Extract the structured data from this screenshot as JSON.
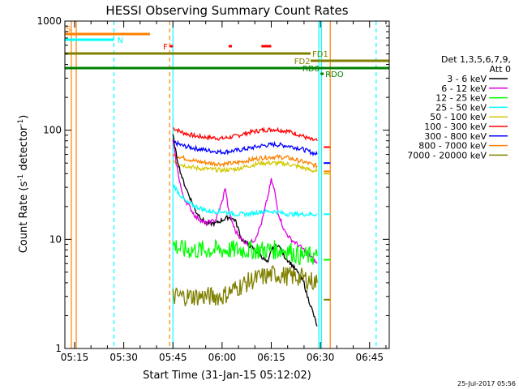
{
  "chart_data": {
    "type": "line",
    "title": "HESSI Observing Summary Count Rates",
    "xlabel": "Start Time (31-Jan-15 05:12:02)",
    "ylabel_main": "Count Rate (s",
    "ylabel_sup": "-1",
    "ylabel_tail": " detector",
    "ylabel_end": ")",
    "yscale": "log",
    "xlim": [
      "05:12:02",
      "06:51:00"
    ],
    "ylim": [
      1,
      1000
    ],
    "x_ticks": [
      "05:15",
      "05:30",
      "05:45",
      "06:00",
      "06:15",
      "06:30",
      "06:45"
    ],
    "y_ticks": [
      "1",
      "10",
      "100",
      "1000"
    ],
    "footer_date": "25-Jul-2017 05:56",
    "legend": {
      "header_line1": "Det 1,3,5,6,7,9,",
      "header_line2": "Att 0",
      "entries": [
        {
          "label": "3 - 6 keV",
          "color": "#000000"
        },
        {
          "label": "6 - 12 keV",
          "color": "#e000e0"
        },
        {
          "label": "12 - 25 keV",
          "color": "#00ff00"
        },
        {
          "label": "25 - 50 keV",
          "color": "#00ffff"
        },
        {
          "label": "50 - 100 keV",
          "color": "#d2c800"
        },
        {
          "label": "100 - 300 keV",
          "color": "#ff0000"
        },
        {
          "label": "300 - 800 keV",
          "color": "#0000ff"
        },
        {
          "label": "800 - 7000 keV",
          "color": "#ff8000"
        },
        {
          "label": "7000 - 20000 keV",
          "color": "#808000"
        }
      ]
    },
    "series": [
      {
        "name": "100 - 300 keV",
        "color": "#ff0000",
        "x": [
          "05:45",
          "05:48",
          "05:52",
          "05:56",
          "06:00",
          "06:04",
          "06:08",
          "06:12",
          "06:16",
          "06:20",
          "06:24",
          "06:27",
          "06:29"
        ],
        "values": [
          105,
          95,
          88,
          86,
          84,
          88,
          95,
          100,
          102,
          98,
          90,
          82,
          80
        ]
      },
      {
        "name": "300 - 800 keV",
        "color": "#0000ff",
        "x": [
          "05:45",
          "05:48",
          "05:52",
          "05:56",
          "06:00",
          "06:04",
          "06:08",
          "06:12",
          "06:16",
          "06:20",
          "06:24",
          "06:27",
          "06:29"
        ],
        "values": [
          78,
          72,
          68,
          65,
          63,
          65,
          68,
          72,
          74,
          72,
          68,
          63,
          60
        ]
      },
      {
        "name": "800 - 7000 keV",
        "color": "#ff8000",
        "x": [
          "05:45",
          "05:48",
          "05:52",
          "05:56",
          "06:00",
          "06:04",
          "06:08",
          "06:12",
          "06:16",
          "06:20",
          "06:24",
          "06:27",
          "06:29"
        ],
        "values": [
          60,
          56,
          52,
          50,
          49,
          50,
          53,
          56,
          57,
          56,
          52,
          49,
          47
        ]
      },
      {
        "name": "50 - 100 keV",
        "color": "#d2c800",
        "x": [
          "05:45",
          "05:48",
          "05:52",
          "05:56",
          "06:00",
          "06:04",
          "06:08",
          "06:12",
          "06:16",
          "06:20",
          "06:24",
          "06:27",
          "06:29"
        ],
        "values": [
          53,
          48,
          45,
          44,
          43,
          44,
          47,
          50,
          50,
          49,
          46,
          43,
          42
        ]
      },
      {
        "name": "3 - 6 keV",
        "color": "#000000",
        "x": [
          "05:45",
          "05:46",
          "05:47",
          "05:48",
          "05:50",
          "05:52",
          "05:55",
          "05:58",
          "06:00",
          "06:02",
          "06:04",
          "06:06",
          "06:08",
          "06:10",
          "06:12",
          "06:14",
          "06:15",
          "06:17",
          "06:19",
          "06:21",
          "06:23",
          "06:25",
          "06:26",
          "06:27",
          "06:28",
          "06:29"
        ],
        "values": [
          90,
          60,
          45,
          35,
          25,
          18,
          14,
          14,
          15,
          16,
          15,
          10,
          9,
          8,
          7,
          6,
          8,
          9,
          7,
          6,
          5,
          4,
          3,
          2.5,
          2,
          1.6
        ]
      },
      {
        "name": "6 - 12 keV",
        "color": "#e000e0",
        "x": [
          "05:45",
          "05:46",
          "05:47",
          "05:48",
          "05:50",
          "05:52",
          "05:55",
          "05:58",
          "05:59",
          "06:00",
          "06:01",
          "06:02",
          "06:04",
          "06:06",
          "06:08",
          "06:10",
          "06:12",
          "06:14",
          "06:15",
          "06:16",
          "06:17",
          "06:19",
          "06:21",
          "06:23",
          "06:25",
          "06:27",
          "06:29"
        ],
        "values": [
          80,
          50,
          35,
          25,
          20,
          16,
          14,
          15,
          18,
          22,
          30,
          18,
          12,
          10,
          9,
          10,
          14,
          25,
          35,
          28,
          18,
          12,
          10,
          9,
          8,
          7,
          6
        ]
      },
      {
        "name": "25 - 50 keV",
        "color": "#00ffff",
        "x": [
          "05:45",
          "05:47",
          "05:49",
          "05:52",
          "05:56",
          "06:00",
          "06:04",
          "06:08",
          "06:12",
          "06:16",
          "06:20",
          "06:24",
          "06:27",
          "06:29"
        ],
        "values": [
          32,
          26,
          22,
          20,
          18,
          18,
          17,
          17,
          18,
          18,
          17,
          17,
          17,
          17
        ]
      },
      {
        "name": "12 - 25 keV",
        "color": "#00ff00",
        "x": [
          "05:45",
          "05:48",
          "05:52",
          "05:56",
          "06:00",
          "06:04",
          "06:08",
          "06:12",
          "06:16",
          "06:20",
          "06:24",
          "06:27",
          "06:29"
        ],
        "values": [
          9,
          8,
          8,
          8,
          8,
          8,
          8,
          8,
          8,
          8,
          7,
          7,
          7
        ]
      },
      {
        "name": "7000 - 20000 keV",
        "color": "#808000",
        "x": [
          "05:45",
          "05:48",
          "05:52",
          "05:56",
          "06:00",
          "06:03",
          "06:06",
          "06:09",
          "06:12",
          "06:16",
          "06:20",
          "06:24",
          "06:27",
          "06:29"
        ],
        "values": [
          3,
          3,
          3,
          3,
          3,
          3.4,
          3.8,
          4.2,
          4.5,
          4.8,
          4.6,
          4.5,
          4.2,
          4
        ]
      }
    ],
    "state_bars": [
      {
        "label": "S",
        "color": "#ff8000",
        "start": "05:12:02",
        "end": "05:38:00"
      },
      {
        "label": "N",
        "color": "#00ffff",
        "start": "05:12:02",
        "end": "05:27:00"
      },
      {
        "label": "F",
        "color": "#ff0000",
        "start": "05:44:00",
        "end": "05:45:00"
      },
      {
        "label": "",
        "color": "#ff0000",
        "start": "06:02:00",
        "end": "06:03:00"
      },
      {
        "label": "",
        "color": "#ff0000",
        "start": "06:12:00",
        "end": "06:15:00"
      },
      {
        "label": "FD1",
        "color": "#808000",
        "start": "05:12:02",
        "end": "06:27:00"
      },
      {
        "label": "FD2",
        "color": "#808000",
        "start": "06:27:00",
        "end": "06:51:00"
      },
      {
        "label": "RD6",
        "color": "#008000",
        "start": "05:12:02",
        "end": "06:51:00"
      },
      {
        "label": "RDO",
        "color": "#008000",
        "start": "06:30:00",
        "end": "06:31:00"
      }
    ]
  }
}
